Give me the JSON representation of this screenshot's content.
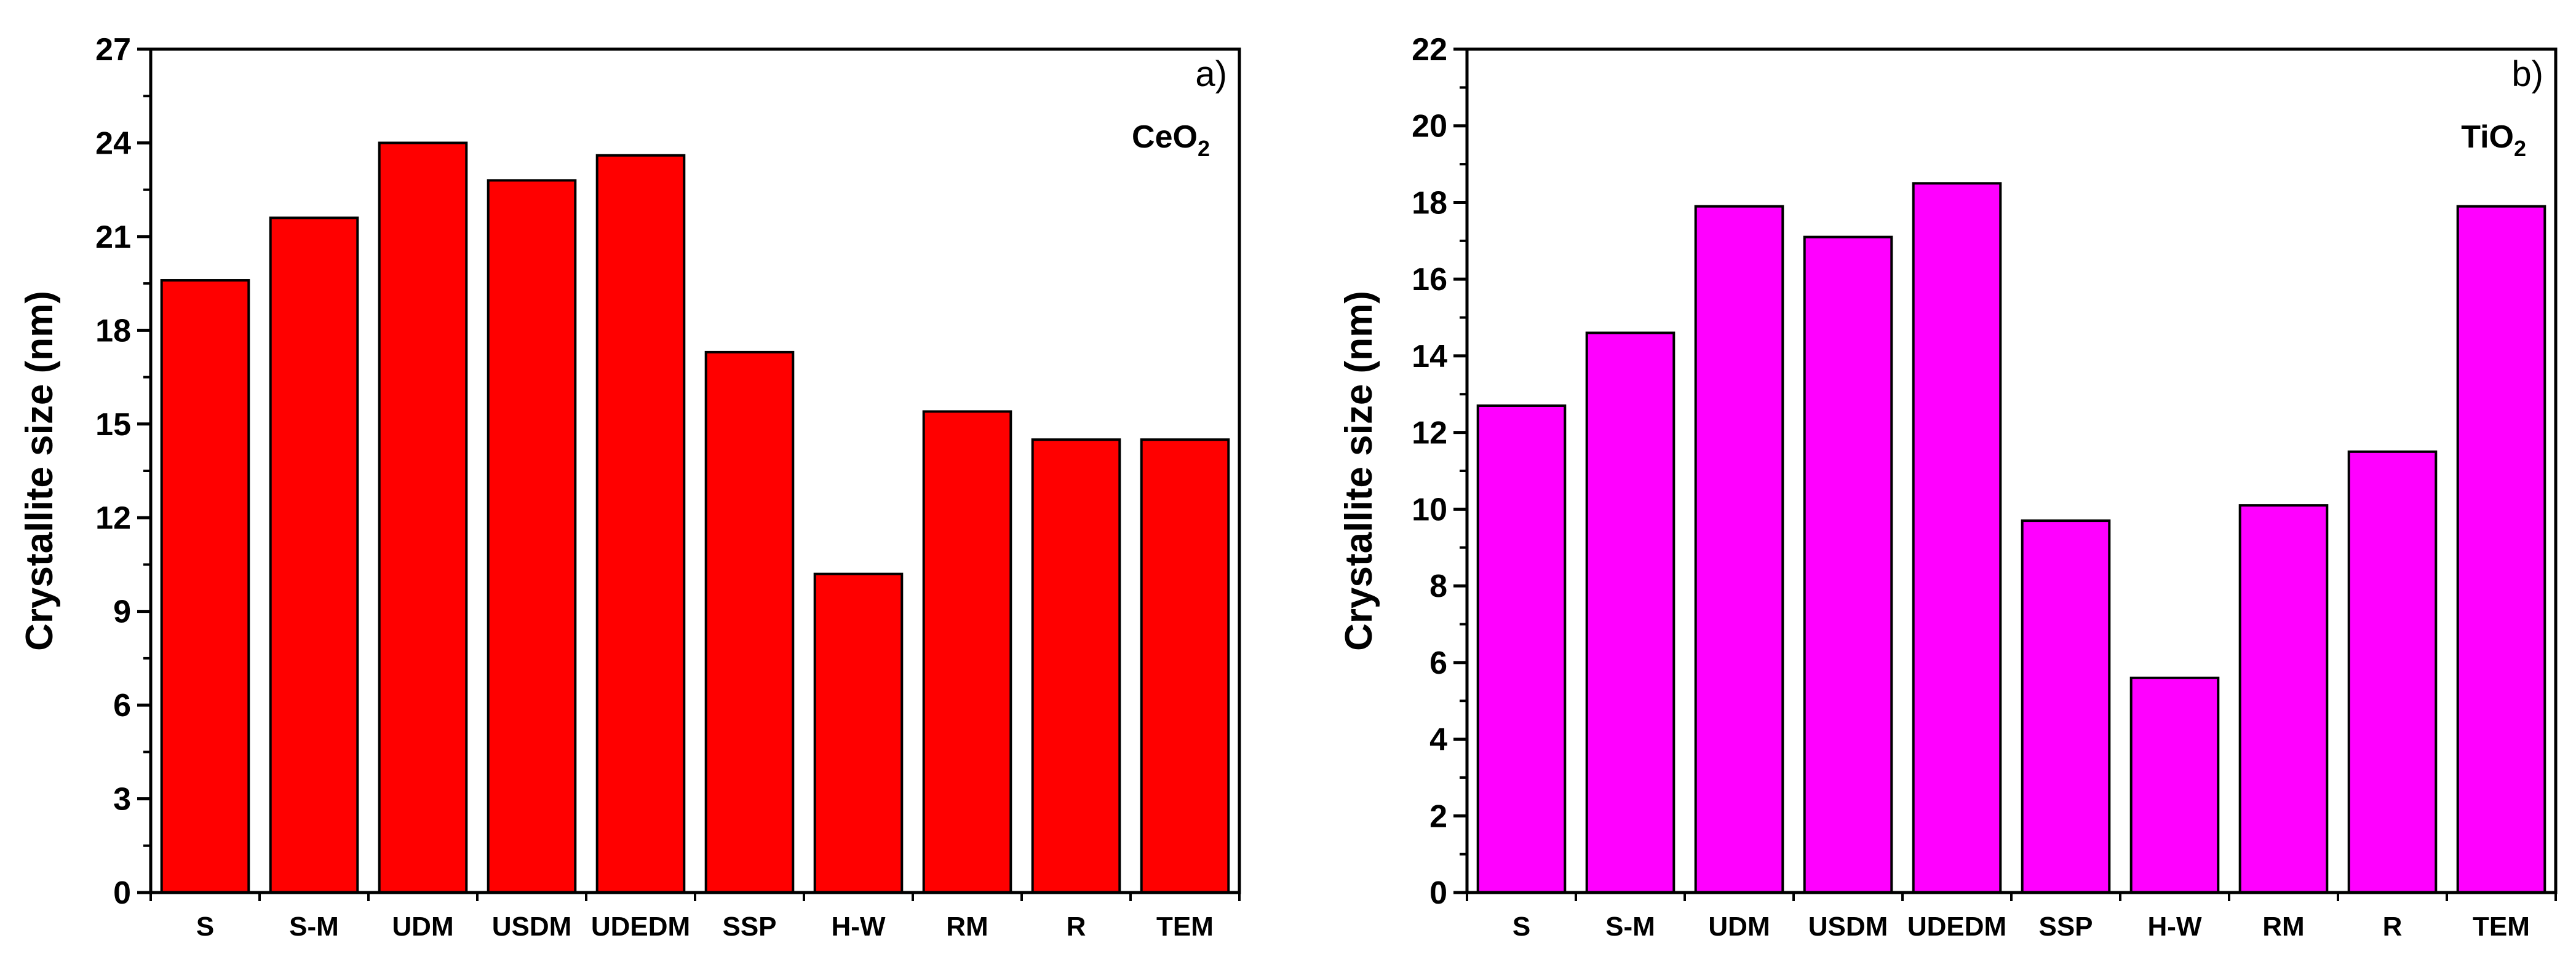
{
  "figure": {
    "colors": {
      "axis": "#000000",
      "background": "#ffffff"
    }
  },
  "chart_data": [
    {
      "type": "bar",
      "panel": "a)",
      "compound": {
        "base": "CeO",
        "sub": "2"
      },
      "categories": [
        "S",
        "S-M",
        "UDM",
        "USDM",
        "UDEDM",
        "SSP",
        "H-W",
        "RM",
        "R",
        "TEM"
      ],
      "values": [
        19.6,
        21.6,
        24.0,
        22.8,
        23.6,
        17.3,
        10.2,
        15.4,
        14.5,
        14.5
      ],
      "ylabel": "Crystallite size (nm)",
      "xlabel": "",
      "ylim": [
        0,
        27
      ],
      "yticks": [
        0,
        3,
        6,
        9,
        12,
        15,
        18,
        21,
        24,
        27
      ],
      "bar_color": "#ff0000"
    },
    {
      "type": "bar",
      "panel": "b)",
      "compound": {
        "base": "TiO",
        "sub": "2"
      },
      "categories": [
        "S",
        "S-M",
        "UDM",
        "USDM",
        "UDEDM",
        "SSP",
        "H-W",
        "RM",
        "R",
        "TEM"
      ],
      "values": [
        12.7,
        14.6,
        17.9,
        17.1,
        18.5,
        9.7,
        5.6,
        10.1,
        11.5,
        17.9
      ],
      "ylabel": "Crystallite size (nm)",
      "xlabel": "",
      "ylim": [
        0,
        22
      ],
      "yticks": [
        0,
        2,
        4,
        6,
        8,
        10,
        12,
        14,
        16,
        18,
        20,
        22
      ],
      "bar_color": "#ff00ff"
    }
  ]
}
